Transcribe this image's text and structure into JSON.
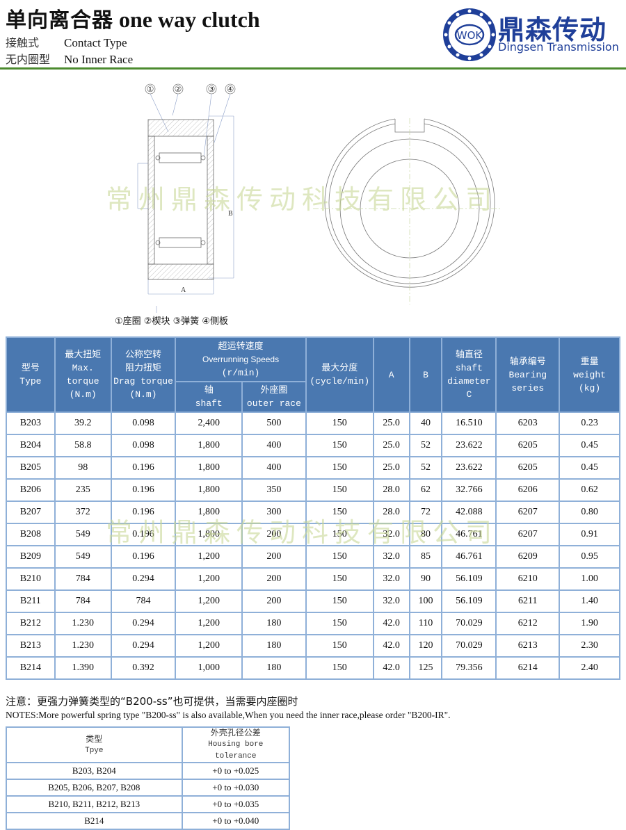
{
  "header": {
    "title_cn": "单向离合器",
    "title_en": "one way clutch",
    "lines": [
      {
        "cn": "接触式",
        "en": "Contact Type"
      },
      {
        "cn": "无内圈型",
        "en": "No Inner Race"
      }
    ]
  },
  "brand": {
    "logo_text": "WOK",
    "name_cn": "鼎森传动",
    "name_en": "Dingsen Transmission",
    "color": "#1f3f99"
  },
  "watermark": "常州鼎森传动科技有限公司",
  "drawing": {
    "callouts": [
      "①",
      "②",
      "③",
      "④"
    ],
    "dimension_labels": [
      "A",
      "B"
    ],
    "legend": "①座圈 ②楔块 ③弹簧 ④侧板"
  },
  "spec_table": {
    "header_color": "#4a78b0",
    "headers": {
      "type": {
        "cn": "型号",
        "en": "Type"
      },
      "max_torque": {
        "cn": "最大扭矩",
        "en1": "Max.",
        "en2": "torque",
        "unit": "(N.m)"
      },
      "drag_torque": {
        "cn1": "公称空转",
        "cn2": "阻力扭矩",
        "en": "Drag torque",
        "unit": "(N.m)"
      },
      "overrunning": {
        "cn": "超运转速度",
        "en": "Overrunning Speeds",
        "unit": "(r/min)"
      },
      "shaft": {
        "cn": "轴",
        "en": "shaft"
      },
      "outer_race": {
        "cn": "外座圈",
        "en": "outer race"
      },
      "max_index": {
        "cn": "最大分度",
        "unit": "(cycle/min)"
      },
      "a": "A",
      "b": "B",
      "shaft_diameter": {
        "cn": "轴直径",
        "en1": "shaft",
        "en2": "diameter",
        "en3": "C"
      },
      "bearing": {
        "cn": "轴承编号",
        "en1": "Bearing",
        "en2": "series"
      },
      "weight": {
        "cn": "重量",
        "en": "weight",
        "unit": "(kg)"
      }
    },
    "rows": [
      [
        "B203",
        "39.2",
        "0.098",
        "2,400",
        "500",
        "150",
        "25.0",
        "40",
        "16.510",
        "6203",
        "0.23"
      ],
      [
        "B204",
        "58.8",
        "0.098",
        "1,800",
        "400",
        "150",
        "25.0",
        "52",
        "23.622",
        "6205",
        "0.45"
      ],
      [
        "B205",
        "98",
        "0.196",
        "1,800",
        "400",
        "150",
        "25.0",
        "52",
        "23.622",
        "6205",
        "0.45"
      ],
      [
        "B206",
        "235",
        "0.196",
        "1,800",
        "350",
        "150",
        "28.0",
        "62",
        "32.766",
        "6206",
        "0.62"
      ],
      [
        "B207",
        "372",
        "0.196",
        "1,800",
        "300",
        "150",
        "28.0",
        "72",
        "42.088",
        "6207",
        "0.80"
      ],
      [
        "B208",
        "549",
        "0.196",
        "1,800",
        "200",
        "150",
        "32.0",
        "80",
        "46.761",
        "6207",
        "0.91"
      ],
      [
        "B209",
        "549",
        "0.196",
        "1,200",
        "200",
        "150",
        "32.0",
        "85",
        "46.761",
        "6209",
        "0.95"
      ],
      [
        "B210",
        "784",
        "0.294",
        "1,200",
        "200",
        "150",
        "32.0",
        "90",
        "56.109",
        "6210",
        "1.00"
      ],
      [
        "B211",
        "784",
        "784",
        "1,200",
        "200",
        "150",
        "32.0",
        "100",
        "56.109",
        "6211",
        "1.40"
      ],
      [
        "B212",
        "1.230",
        "0.294",
        "1,200",
        "180",
        "150",
        "42.0",
        "110",
        "70.029",
        "6212",
        "1.90"
      ],
      [
        "B213",
        "1.230",
        "0.294",
        "1,200",
        "180",
        "150",
        "42.0",
        "120",
        "70.029",
        "6213",
        "2.30"
      ],
      [
        "B214",
        "1.390",
        "0.392",
        "1,000",
        "180",
        "150",
        "42.0",
        "125",
        "79.356",
        "6214",
        "2.40"
      ]
    ]
  },
  "notes": {
    "cn": "注意：更强力弹簧类型的“B200-ss”也可提供，当需要内座圈时",
    "en": "NOTES:More powerful spring type \"B200-ss\" is also available,When you need the inner race,please order \"B200-IR\"."
  },
  "tolerance_table": {
    "headers": {
      "type": {
        "cn": "类型",
        "en": "Tpye"
      },
      "tolerance": {
        "cn": "外壳孔径公差",
        "en1": "Housing bore",
        "en2": "tolerance"
      }
    },
    "rows": [
      [
        "B203, B204",
        "+0 to +0.025"
      ],
      [
        "B205, B206, B207, B208",
        "+0 to +0.030"
      ],
      [
        "B210, B211, B212, B213",
        "+0 to +0.035"
      ],
      [
        "B214",
        "+0 to +0.040"
      ]
    ]
  }
}
